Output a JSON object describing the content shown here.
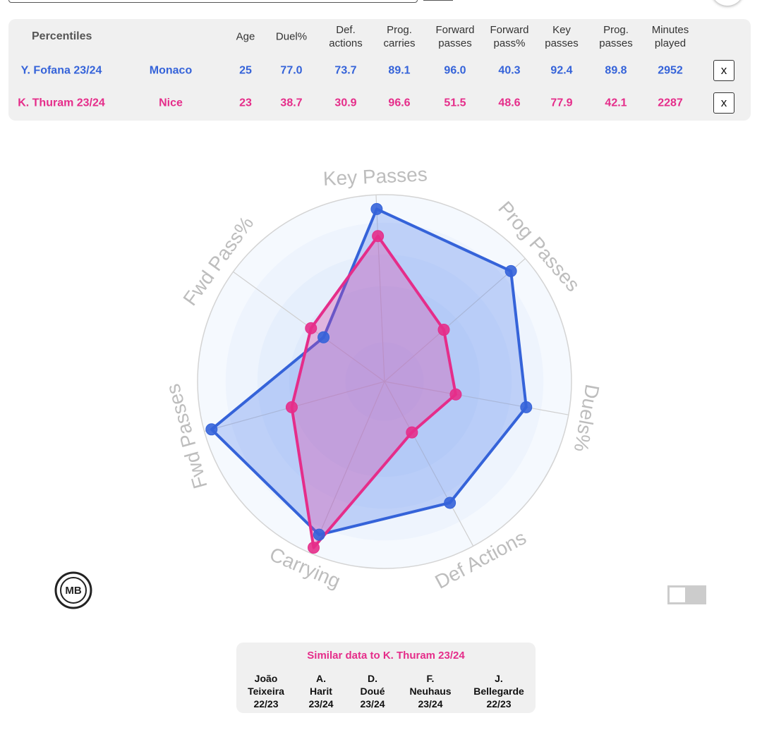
{
  "table": {
    "title": "Percentiles",
    "columns": [
      "Age",
      "Duel%",
      "Def. actions",
      "Prog. carries",
      "Forward passes",
      "Forward pass%",
      "Key passes",
      "Prog. passes",
      "Minutes played"
    ],
    "rows": [
      {
        "player": "Y. Fofana 23/24",
        "team": "Monaco",
        "stats": [
          "25",
          "77.0",
          "73.7",
          "89.1",
          "96.0",
          "40.3",
          "92.4",
          "89.8",
          "2952"
        ],
        "action": "x"
      },
      {
        "player": "K. Thuram 23/24",
        "team": "Nice",
        "stats": [
          "23",
          "38.7",
          "30.9",
          "96.6",
          "51.5",
          "48.6",
          "77.9",
          "42.1",
          "2287"
        ],
        "action": "x"
      }
    ]
  },
  "chart_data": {
    "type": "radar",
    "axes": [
      "Key Passes",
      "Prog Passes",
      "Duels%",
      "Def Actions",
      "Carrying",
      "Fwd Passes",
      "Fwd Pass%"
    ],
    "rlim": [
      0,
      100
    ],
    "series": [
      {
        "color": "#3563d9",
        "values": [
          92.4,
          89.8,
          77.0,
          73.7,
          89.1,
          96.0,
          40.3
        ]
      },
      {
        "color": "#e52d8a",
        "values": [
          77.9,
          42.1,
          38.7,
          30.9,
          96.6,
          51.5,
          48.6
        ]
      }
    ]
  },
  "similar": {
    "title": "Similar data to K. Thuram 23/24",
    "players": [
      {
        "name": "João Teixeira",
        "season": "22/23"
      },
      {
        "name": "A. Harit",
        "season": "23/24"
      },
      {
        "name": "D. Doué",
        "season": "23/24"
      },
      {
        "name": "F. Neuhaus",
        "season": "23/24"
      },
      {
        "name": "J. Bellegarde",
        "season": "22/23"
      }
    ]
  }
}
